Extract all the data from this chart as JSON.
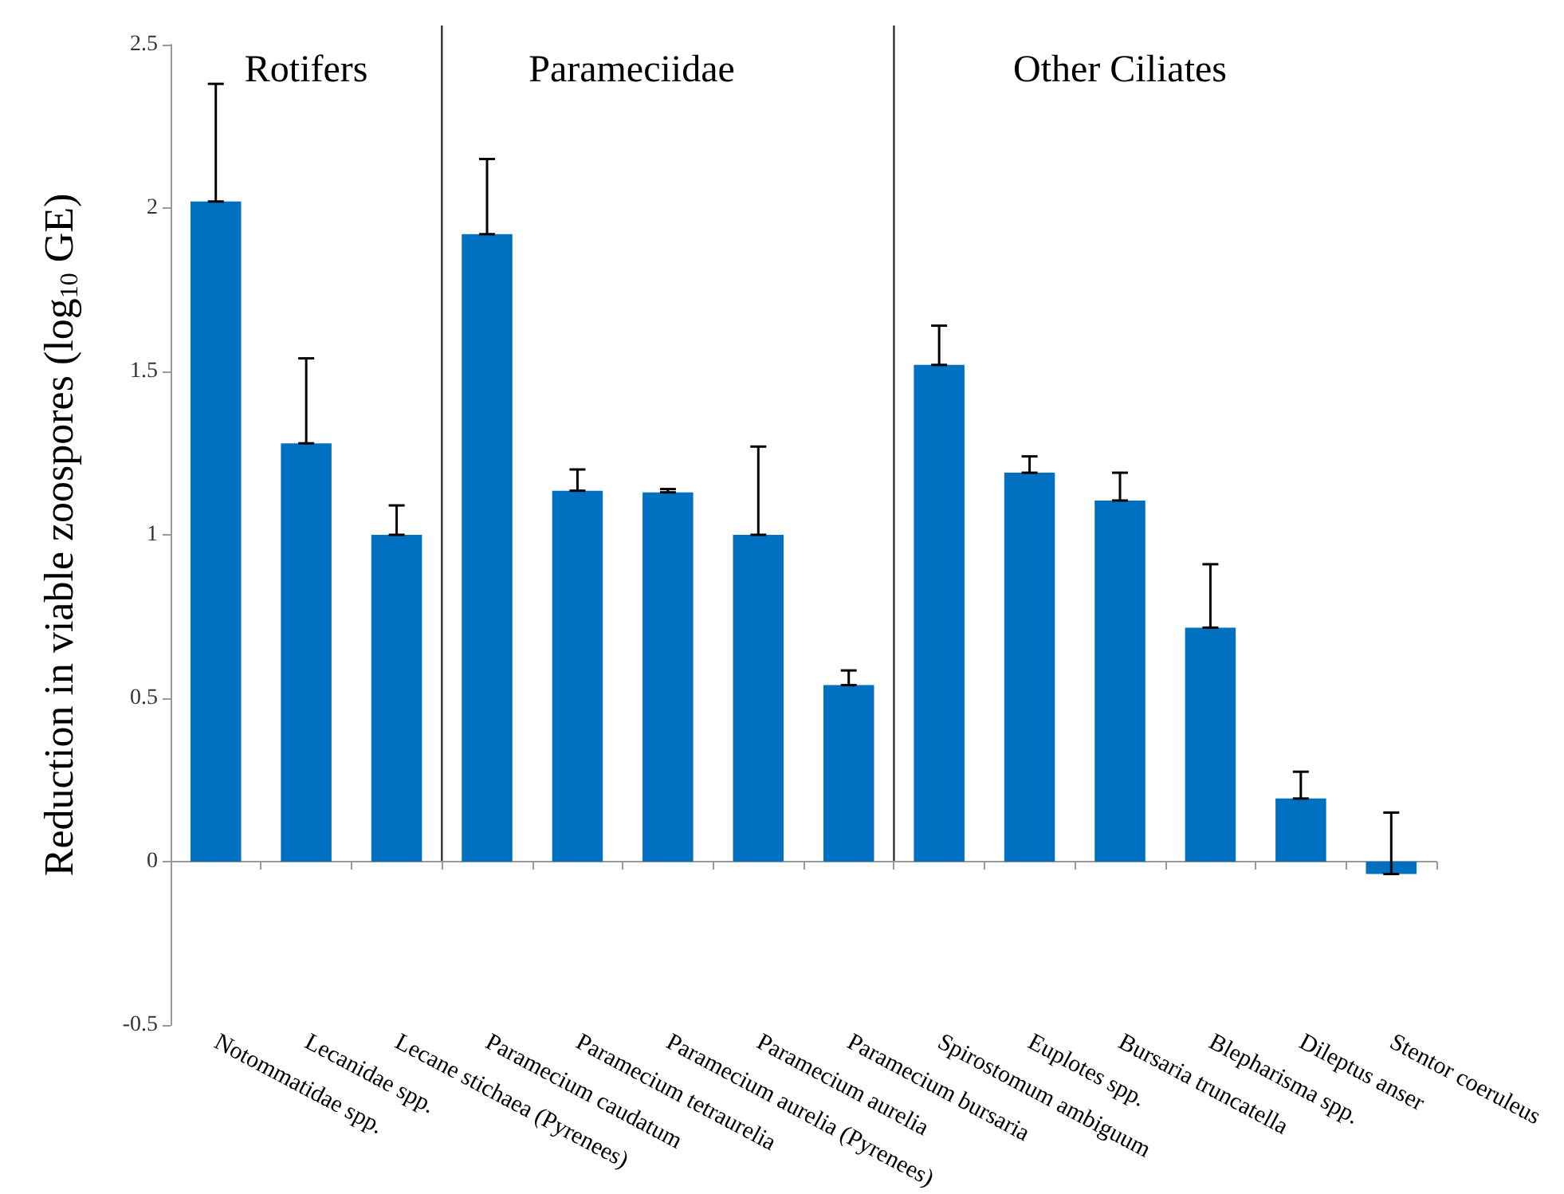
{
  "chart_data": {
    "type": "bar",
    "ylabel": "Reduction in viable zoospores (log$_{10}$ GE)",
    "categories": [
      "Notommatidae spp.",
      "Lecanidae spp.",
      "Lecane stichaea (Pyrenees)",
      "Paramecium caudatum",
      "Paramecium tetraurelia",
      "Paramecium aurelia (Pyrenees)",
      "Paramecium aurelia",
      "Paramecium bursaria",
      "Spirostomum ambiguum",
      "Euplotes spp.",
      "Bursaria truncatella",
      "Blepharisma spp.",
      "Dileptus anser",
      "Stentor coeruleus"
    ],
    "values": [
      2.02,
      1.28,
      1.0,
      1.92,
      1.135,
      1.13,
      1.0,
      0.54,
      1.52,
      1.19,
      1.105,
      0.716,
      0.193,
      -0.038
    ],
    "errors": [
      [
        2.02,
        2.38
      ],
      [
        1.28,
        1.54
      ],
      [
        1.0,
        1.09
      ],
      [
        1.92,
        2.15
      ],
      [
        1.135,
        1.2
      ],
      [
        1.13,
        1.14
      ],
      [
        1.0,
        1.27
      ],
      [
        0.54,
        0.585
      ],
      [
        1.52,
        1.64
      ],
      [
        1.19,
        1.24
      ],
      [
        1.105,
        1.19
      ],
      [
        0.716,
        0.91
      ],
      [
        0.193,
        0.275
      ],
      [
        -0.038,
        0.15
      ]
    ],
    "color": "#0070c0",
    "ylim": [
      -0.5,
      2.5
    ],
    "yticks": [
      -0.5,
      0,
      0.5,
      1,
      1.5,
      2,
      2.5
    ],
    "annotations": [
      "Rotifers",
      "Parameciidae",
      "Other Ciliates"
    ],
    "grid": false,
    "legend": false
  }
}
